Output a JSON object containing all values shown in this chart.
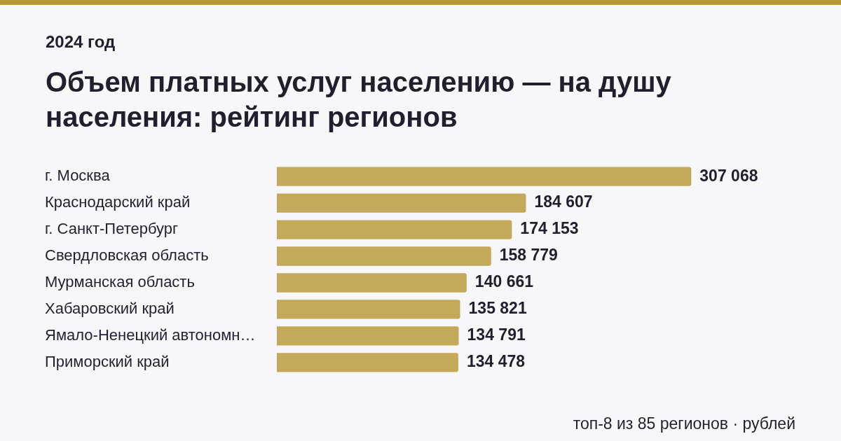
{
  "chart_data": {
    "type": "bar",
    "orientation": "horizontal",
    "subtitle": "2024 год",
    "title": "Объем платных услуг населению — на душу населения: рейтинг регионов",
    "categories": [
      "г. Москва",
      "Краснодарский край",
      "г. Санкт-Петербург",
      "Свердловская область",
      "Мурманская область",
      "Хабаровский край",
      "Ямало-Ненецкий автономн…",
      "Приморский край"
    ],
    "values": [
      307068,
      184607,
      174153,
      158779,
      140661,
      135821,
      134791,
      134478
    ],
    "color": "#c5a95a",
    "data_labels": true,
    "annotations": [
      "топ-8 из 85 регионов · рублей"
    ]
  }
}
